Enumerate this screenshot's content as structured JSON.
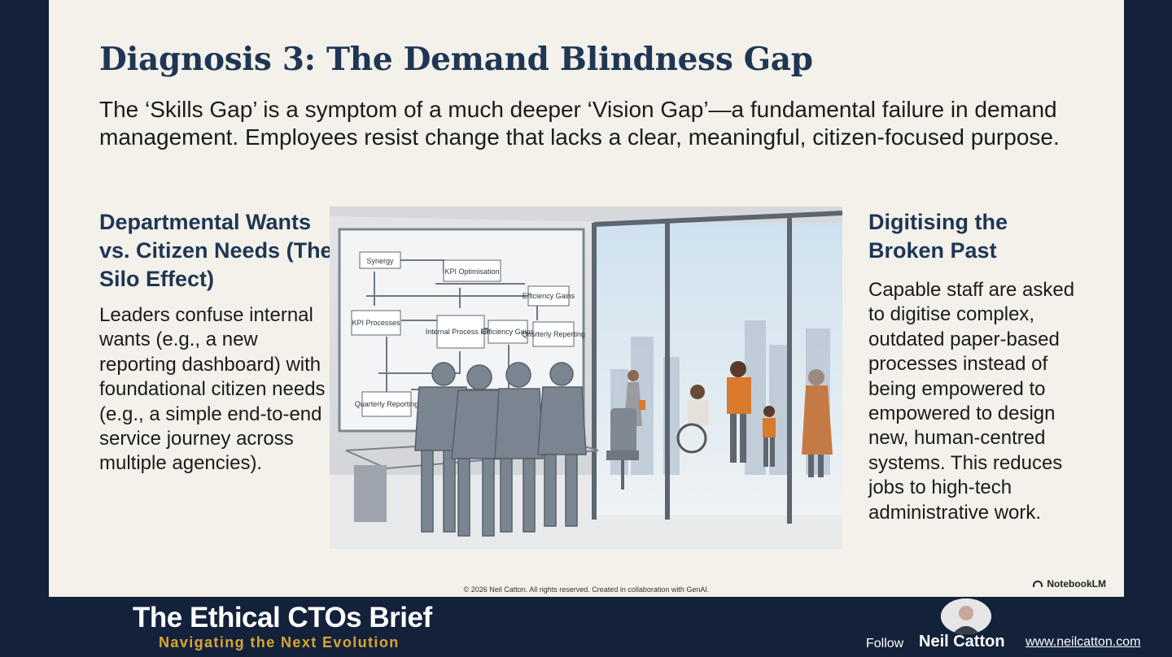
{
  "slide": {
    "title": "Diagnosis 3: The Demand Blindness Gap",
    "subtitle": "The ‘Skills Gap’ is a symptom of a much deeper ‘Vision Gap’—a fundamental failure in demand management. Employees resist change that lacks a clear, meaningful, citizen-focused purpose.",
    "left_column": {
      "heading": "Departmental Wants vs. Citizen Needs (The Silo Effect)",
      "body": "Leaders confuse internal wants (e.g., a new reporting dashboard) with foundational citizen needs (e.g., a simple end-to-end service journey across multiple agencies)."
    },
    "right_column": {
      "heading": "Digitising the Broken Past",
      "body": "Capable staff are asked to digitise complex, outdated paper-based processes instead of being empowered to empowered to design new, human-centred systems. This reduces jobs to high-tech administrative work."
    },
    "illustration": {
      "whiteboard_boxes": [
        "Synergy",
        "KPI Optimisation",
        "Efficiency Gains",
        "KPI Processes",
        "Internal Process Flow",
        "Efficiency Gains",
        "Qnsrterly Reperting",
        "Quarterly Reporting"
      ]
    },
    "copyright": "© 2026 Neil Catton. All rights reserved. Created in collaboration with GenAI.",
    "watermark": "NotebookLM"
  },
  "footer": {
    "brand_title": "The Ethical CTOs Brief",
    "brand_subtitle": "Navigating the Next Evolution",
    "follow_label": "Follow",
    "author": "Neil Catton",
    "website": "www.neilcatton.com"
  },
  "colors": {
    "background": "#13223a",
    "slide": "#f3f1ea",
    "title": "#1f3654",
    "accent_gold": "#d9a533",
    "accent_orange": "#d9792c"
  }
}
